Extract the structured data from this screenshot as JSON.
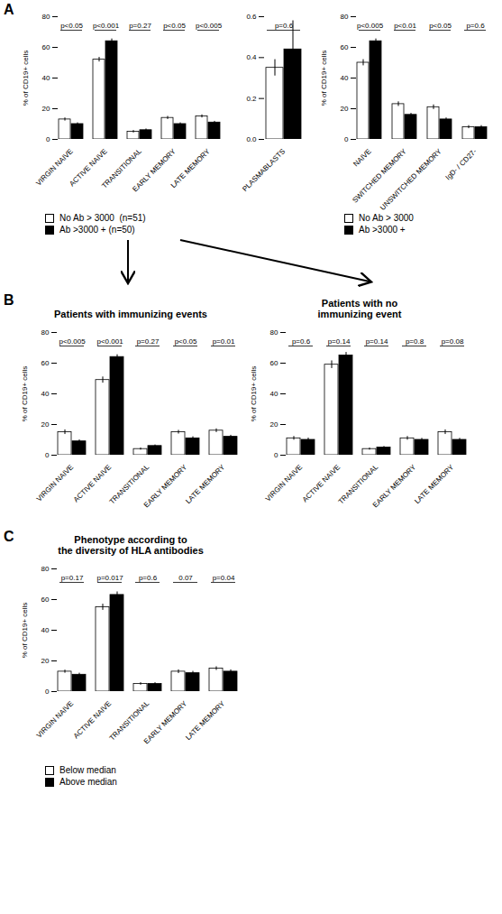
{
  "chart_data": [
    {
      "type": "bar",
      "panel_label": "A",
      "ylabel": "% of CD19+ cells",
      "categories": [
        "VIRGIN NAIVE",
        "ACTIVE NAIVE",
        "TRANSITIONAL",
        "EARLY MEMORY",
        "LATE MEMORY"
      ],
      "series": [
        {
          "name": "No Ab > 3000  (n=51)",
          "color": "#ffffff",
          "values": [
            13,
            52,
            5,
            14,
            15
          ],
          "errors": [
            1.0,
            1.5,
            0.8,
            1.0,
            1.0
          ]
        },
        {
          "name": "Ab >3000 + (n=50)",
          "color": "#000000",
          "values": [
            10,
            64,
            6,
            10,
            11
          ],
          "errors": [
            0.8,
            1.5,
            0.8,
            0.8,
            0.8
          ]
        }
      ],
      "ylim": [
        0,
        80
      ],
      "yticks": [
        0,
        20,
        40,
        60,
        80
      ],
      "annotations": [
        {
          "category": "VIRGIN NAIVE",
          "text": "p<0.05"
        },
        {
          "category": "ACTIVE NAIVE",
          "text": "p<0.001"
        },
        {
          "category": "TRANSITIONAL",
          "text": "p=0.27"
        },
        {
          "category": "EARLY MEMORY",
          "text": "p<0.05"
        },
        {
          "category": "LATE MEMORY",
          "text": "p<0.005"
        }
      ],
      "legend": "below"
    },
    {
      "type": "bar",
      "categories": [
        "PLASMABLASTS"
      ],
      "series": [
        {
          "color": "#ffffff",
          "values": [
            0.35
          ],
          "errors": [
            0.04
          ]
        },
        {
          "color": "#000000",
          "values": [
            0.44
          ],
          "errors": [
            0.14
          ]
        }
      ],
      "ylim": [
        0.0,
        0.6
      ],
      "yticks": [
        {
          "value": 0,
          "label": "0.0"
        },
        0.2,
        0.4,
        0.6
      ],
      "annotations": [
        {
          "category": "PLASMABLASTS",
          "text": "p=0.6"
        }
      ]
    },
    {
      "type": "bar",
      "ylabel": "% of CD19+ cells",
      "categories": [
        "NAIVE",
        "SWITCHED MEMORY",
        "UNSWITCHED MEMORY",
        "IgD- / CD27-"
      ],
      "series": [
        {
          "name": "No Ab > 3000",
          "color": "#ffffff",
          "values": [
            50,
            23,
            21,
            8
          ],
          "errors": [
            2.0,
            1.5,
            1.5,
            1.0
          ]
        },
        {
          "name": "Ab >3000 +",
          "color": "#000000",
          "values": [
            64,
            16,
            13,
            8
          ],
          "errors": [
            1.5,
            1.0,
            1.0,
            1.0
          ]
        }
      ],
      "ylim": [
        0,
        80
      ],
      "yticks": [
        0,
        20,
        40,
        60,
        80
      ],
      "annotations": [
        {
          "category": "NAIVE",
          "text": "p<0.005"
        },
        {
          "category": "SWITCHED MEMORY",
          "text": "p<0.01"
        },
        {
          "category": "UNSWITCHED MEMORY",
          "text": "p<0.05"
        },
        {
          "category": "IgD- / CD27-",
          "text": "p=0.6"
        }
      ],
      "legend": "below"
    },
    {
      "type": "bar",
      "panel_label": "B",
      "title": "Patients with immunizing events",
      "ylabel": "% of CD19+ cells",
      "categories": [
        "VIRGIN NAIVE",
        "ACTIVE NAIVE",
        "TRANSITIONAL",
        "EARLY MEMORY",
        "LATE MEMORY"
      ],
      "series": [
        {
          "color": "#ffffff",
          "values": [
            15,
            49,
            4,
            15,
            16
          ],
          "errors": [
            1.5,
            2.0,
            0.7,
            1.2,
            1.2
          ]
        },
        {
          "color": "#000000",
          "values": [
            9,
            64,
            6,
            11,
            12
          ],
          "errors": [
            1.0,
            1.5,
            0.7,
            1.0,
            1.0
          ]
        }
      ],
      "ylim": [
        0,
        80
      ],
      "yticks": [
        0,
        20,
        40,
        60,
        80
      ],
      "annotations": [
        {
          "category": "VIRGIN NAIVE",
          "text": "p<0.005"
        },
        {
          "category": "ACTIVE NAIVE",
          "text": "p<0.001"
        },
        {
          "category": "TRANSITIONAL",
          "text": "p=0.27"
        },
        {
          "category": "EARLY MEMORY",
          "text": "p<0.05"
        },
        {
          "category": "LATE MEMORY",
          "text": "p=0.01"
        }
      ]
    },
    {
      "type": "bar",
      "title": "Patients with no\nimmunizing event",
      "ylabel": "% of CD19+ cells",
      "categories": [
        "VIRGIN NAIVE",
        "ACTIVE NAIVE",
        "TRANSITIONAL",
        "EARLY MEMORY",
        "LATE MEMORY"
      ],
      "series": [
        {
          "color": "#ffffff",
          "values": [
            11,
            59,
            4,
            11,
            15
          ],
          "errors": [
            1.2,
            2.5,
            0.7,
            1.2,
            1.5
          ]
        },
        {
          "color": "#000000",
          "values": [
            10,
            65,
            5,
            10,
            10
          ],
          "errors": [
            1.2,
            2.0,
            0.7,
            1.0,
            1.0
          ]
        }
      ],
      "ylim": [
        0,
        80
      ],
      "yticks": [
        0,
        20,
        40,
        60,
        80
      ],
      "annotations": [
        {
          "category": "VIRGIN NAIVE",
          "text": "p=0.6"
        },
        {
          "category": "ACTIVE NAIVE",
          "text": "p=0.14"
        },
        {
          "category": "TRANSITIONAL",
          "text": "p=0.14"
        },
        {
          "category": "EARLY MEMORY",
          "text": "p=0.8"
        },
        {
          "category": "LATE MEMORY",
          "text": "p=0.08"
        }
      ]
    },
    {
      "type": "bar",
      "panel_label": "C",
      "title": "Phenotype according to\nthe diversity of HLA antibodies",
      "ylabel": "% of CD19+ cells",
      "categories": [
        "VIRGIN NAIVE",
        "ACTIVE NAIVE",
        "TRANSITIONAL",
        "EARLY MEMORY",
        "LATE MEMORY"
      ],
      "series": [
        {
          "name": "Below median",
          "color": "#ffffff",
          "values": [
            13,
            55,
            5,
            13,
            15
          ],
          "errors": [
            1.0,
            2.0,
            0.8,
            1.2,
            1.2
          ]
        },
        {
          "name": "Above median",
          "color": "#000000",
          "values": [
            11,
            63,
            5,
            12,
            13
          ],
          "errors": [
            1.0,
            2.0,
            0.8,
            1.2,
            1.2
          ]
        }
      ],
      "ylim": [
        0,
        80
      ],
      "yticks": [
        0,
        20,
        40,
        60,
        80
      ],
      "annotations": [
        {
          "category": "VIRGIN NAIVE",
          "text": "p=0.17"
        },
        {
          "category": "ACTIVE NAIVE",
          "text": "p=0.017"
        },
        {
          "category": "TRANSITIONAL",
          "text": "p=0.6"
        },
        {
          "category": "EARLY MEMORY",
          "text": "0.07"
        },
        {
          "category": "LATE MEMORY",
          "text": "p=0.04"
        }
      ],
      "legend": "below"
    }
  ]
}
